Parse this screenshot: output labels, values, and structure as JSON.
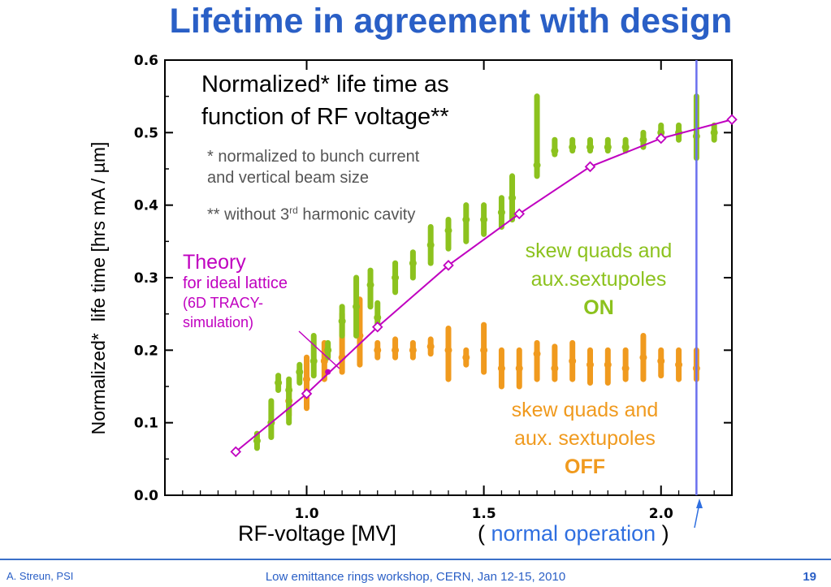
{
  "slide": {
    "title": "Lifetime in agreement with design",
    "chart_title_line1": "Normalized* life time as",
    "chart_title_line2": "function of RF voltage**",
    "footnote1_line1": "* normalized to bunch current",
    "footnote1_line2": "and vertical beam size",
    "footnote2_pre": "** without 3",
    "footnote2_sup": "rd",
    "footnote2_post": " harmonic cavity",
    "theory_line1": "Theory",
    "theory_line2": "for ideal lattice",
    "theory_line3": "(6D TRACY-",
    "theory_line4": "simulation)",
    "on_line1": "skew quads and",
    "on_line2": "aux.sextupoles",
    "on_line3": "ON",
    "off_line1": "skew quads and",
    "off_line2": "aux. sextupoles",
    "off_line3": "OFF",
    "ylabel_part1": "Normalized*",
    "ylabel_part2": "life time [hrs mA / µm]",
    "xlabel": "RF-voltage [MV]",
    "normal_open": "( ",
    "normal_text": "normal operation",
    "normal_close": " )",
    "footer_left": "A. Streun, PSI",
    "footer_center": "Low emittance rings workshop, CERN, Jan 12-15, 2010",
    "page_number": "19"
  },
  "colors": {
    "title": "#2a5fc6",
    "theory": "#c000c0",
    "on": "#8cc21e",
    "off": "#f09a1e",
    "normal_operation": "#2f6fe0"
  },
  "chart_data": {
    "type": "scatter",
    "xlim": [
      0.6,
      2.2
    ],
    "ylim": [
      0.0,
      0.6
    ],
    "xticks": [
      {
        "v": 1.0,
        "label": "1.0"
      },
      {
        "v": 1.5,
        "label": "1.5"
      },
      {
        "v": 2.0,
        "label": "2.0"
      }
    ],
    "yticks": [
      {
        "v": 0.0,
        "label": "0.0"
      },
      {
        "v": 0.1,
        "label": "0.1"
      },
      {
        "v": 0.2,
        "label": "0.2"
      },
      {
        "v": 0.3,
        "label": "0.3"
      },
      {
        "v": 0.4,
        "label": "0.4"
      },
      {
        "v": 0.5,
        "label": "0.5"
      },
      {
        "v": 0.6,
        "label": "0.6"
      }
    ],
    "normal_operation_x": 2.1,
    "theory": {
      "x": [
        0.8,
        1.0,
        1.2,
        1.4,
        1.6,
        1.8,
        2.0,
        2.2
      ],
      "y": [
        0.06,
        0.14,
        0.232,
        0.317,
        0.388,
        0.453,
        0.492,
        0.518
      ],
      "marker_point": {
        "x": 1.06,
        "y": 0.17
      }
    },
    "series": [
      {
        "key": "on",
        "x": [
          0.86,
          0.9,
          0.92,
          0.95,
          0.98,
          1.02,
          1.06,
          1.1,
          1.14,
          1.18,
          1.2,
          1.25,
          1.3,
          1.35,
          1.4,
          1.45,
          1.5,
          1.55,
          1.58,
          1.65,
          1.7,
          1.75,
          1.8,
          1.85,
          1.9,
          1.95,
          2.0,
          2.05,
          2.1,
          2.15
        ],
        "y": [
          0.075,
          0.1,
          0.155,
          0.145,
          0.17,
          0.185,
          0.2,
          0.24,
          0.26,
          0.29,
          0.245,
          0.3,
          0.32,
          0.345,
          0.365,
          0.38,
          0.38,
          0.39,
          0.41,
          0.455,
          0.475,
          0.48,
          0.48,
          0.48,
          0.48,
          0.49,
          0.5,
          0.5,
          0.495,
          0.5
        ],
        "ymin": [
          0.065,
          0.08,
          0.145,
          0.1,
          0.155,
          0.165,
          0.19,
          0.22,
          0.22,
          0.26,
          0.23,
          0.28,
          0.3,
          0.32,
          0.34,
          0.35,
          0.36,
          0.37,
          0.38,
          0.44,
          0.47,
          0.475,
          0.475,
          0.475,
          0.475,
          0.48,
          0.49,
          0.49,
          0.465,
          0.49
        ],
        "ymax": [
          0.085,
          0.13,
          0.165,
          0.16,
          0.18,
          0.22,
          0.21,
          0.26,
          0.3,
          0.31,
          0.265,
          0.32,
          0.335,
          0.37,
          0.38,
          0.4,
          0.4,
          0.41,
          0.44,
          0.55,
          0.49,
          0.49,
          0.49,
          0.49,
          0.49,
          0.5,
          0.51,
          0.51,
          0.55,
          0.51
        ]
      },
      {
        "key": "off",
        "x": [
          0.95,
          1.0,
          1.05,
          1.1,
          1.15,
          1.2,
          1.25,
          1.3,
          1.35,
          1.4,
          1.45,
          1.5,
          1.55,
          1.6,
          1.65,
          1.7,
          1.75,
          1.8,
          1.85,
          1.9,
          1.95,
          2.0,
          2.05,
          2.1
        ],
        "y": [
          0.13,
          0.16,
          0.185,
          0.19,
          0.22,
          0.2,
          0.2,
          0.2,
          0.205,
          0.2,
          0.19,
          0.2,
          0.175,
          0.175,
          0.195,
          0.175,
          0.185,
          0.18,
          0.18,
          0.175,
          0.19,
          0.185,
          0.18,
          0.175
        ],
        "ymin": [
          0.11,
          0.12,
          0.16,
          0.17,
          0.18,
          0.19,
          0.19,
          0.19,
          0.195,
          0.16,
          0.18,
          0.17,
          0.15,
          0.15,
          0.16,
          0.16,
          0.16,
          0.155,
          0.155,
          0.16,
          0.16,
          0.165,
          0.16,
          0.16
        ],
        "ymax": [
          0.15,
          0.19,
          0.21,
          0.25,
          0.27,
          0.21,
          0.215,
          0.21,
          0.215,
          0.23,
          0.2,
          0.235,
          0.2,
          0.2,
          0.21,
          0.205,
          0.21,
          0.2,
          0.2,
          0.2,
          0.22,
          0.2,
          0.2,
          0.2
        ]
      }
    ]
  }
}
